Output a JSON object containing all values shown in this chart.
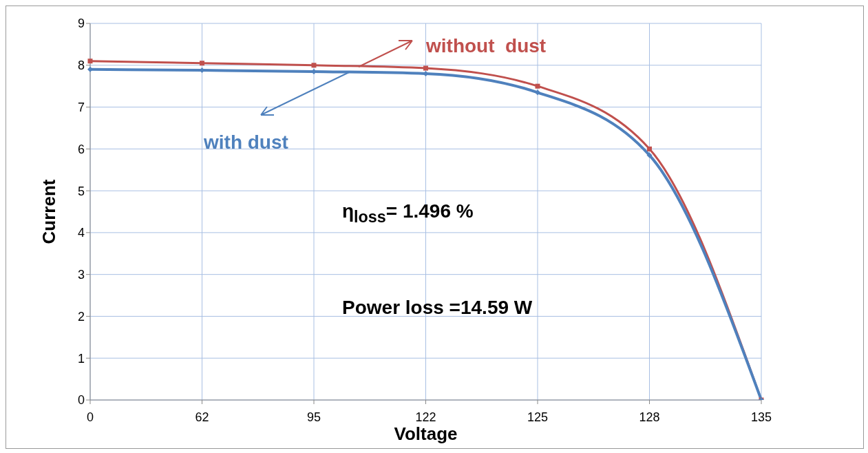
{
  "chart_data": {
    "type": "line",
    "xlabel": "Voltage",
    "ylabel": "Current",
    "categories": [
      "0",
      "62",
      "95",
      "122",
      "125",
      "128",
      "135"
    ],
    "series": [
      {
        "name": "without  dust",
        "color": "#c0504d",
        "marker": "square",
        "values": [
          8.1,
          8.05,
          8.0,
          7.93,
          7.5,
          6.0,
          0
        ]
      },
      {
        "name": "with dust",
        "color": "#4f81bd",
        "marker": "diamond",
        "values": [
          7.9,
          7.88,
          7.85,
          7.8,
          7.35,
          5.85,
          0
        ]
      }
    ],
    "ylim": [
      0,
      9
    ],
    "yticks": [
      0,
      1,
      2,
      3,
      4,
      5,
      6,
      7,
      8,
      9
    ],
    "grid": true,
    "line_style": "solid",
    "annotations": [
      "η$_{loss}$= 1.496 %",
      "Power loss =14.59 W"
    ]
  }
}
